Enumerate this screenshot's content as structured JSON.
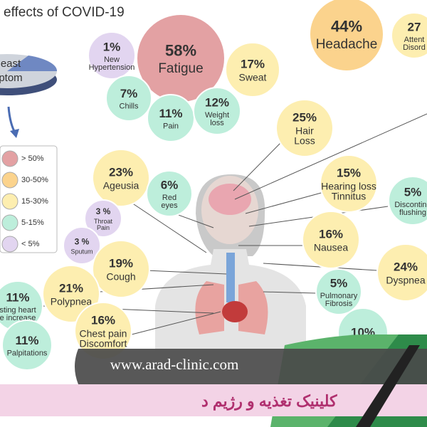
{
  "header": {
    "title": "effects of COVID-19"
  },
  "pie": {
    "lines": [
      "east",
      "ptom"
    ]
  },
  "legend": [
    "> 50%",
    "30-50%",
    "15-30%",
    "5-15%",
    "< 5%"
  ],
  "bubbles": [
    {
      "percent": "1%",
      "label": [
        "New",
        "Hypertension"
      ]
    },
    {
      "percent": "58%",
      "label": [
        "Fatigue"
      ]
    },
    {
      "percent": "17%",
      "label": [
        "Sweat"
      ]
    },
    {
      "percent": "7%",
      "label": [
        "Chills"
      ]
    },
    {
      "percent": "11%",
      "label": [
        "Pain"
      ]
    },
    {
      "percent": "12%",
      "label": [
        "Weight",
        "loss"
      ]
    },
    {
      "percent": "44%",
      "label": [
        "Headache"
      ]
    },
    {
      "percent": "27",
      "label": [
        "Attent",
        "Disord"
      ]
    },
    {
      "percent": "25%",
      "label": [
        "Hair",
        "Loss"
      ]
    },
    {
      "percent": "23%",
      "label": [
        "Ageusia"
      ]
    },
    {
      "percent": "6%",
      "label": [
        "Red",
        "eyes"
      ]
    },
    {
      "percent": "15%",
      "label": [
        "Hearing loss",
        "Tinnitus"
      ]
    },
    {
      "percent": "5%",
      "label": [
        "Discontinu",
        "flushing"
      ]
    },
    {
      "percent": "3 %",
      "label": [
        "Throat",
        "Pain"
      ]
    },
    {
      "percent": "3 %",
      "label": [
        "Sputum"
      ]
    },
    {
      "percent": "16%",
      "label": [
        "Nausea"
      ]
    },
    {
      "percent": "19%",
      "label": [
        "Cough"
      ]
    },
    {
      "percent": "24%",
      "label": [
        "Dyspnea"
      ]
    },
    {
      "percent": "21%",
      "label": [
        "Polypnea"
      ]
    },
    {
      "percent": "5%",
      "label": [
        "Pulmonary",
        "Fibrosis"
      ]
    },
    {
      "percent": "11%",
      "label": [
        "sting heart",
        "e increase"
      ]
    },
    {
      "percent": "16%",
      "label": [
        "Chest pain",
        "Discomfort"
      ]
    },
    {
      "percent": "11%",
      "label": [
        "Palpitations"
      ]
    },
    {
      "percent": "10%",
      "label": []
    }
  ],
  "banner": {
    "url": "www.arad-clinic.com",
    "text": "کلینیک تغذیه و رژیم د"
  }
}
